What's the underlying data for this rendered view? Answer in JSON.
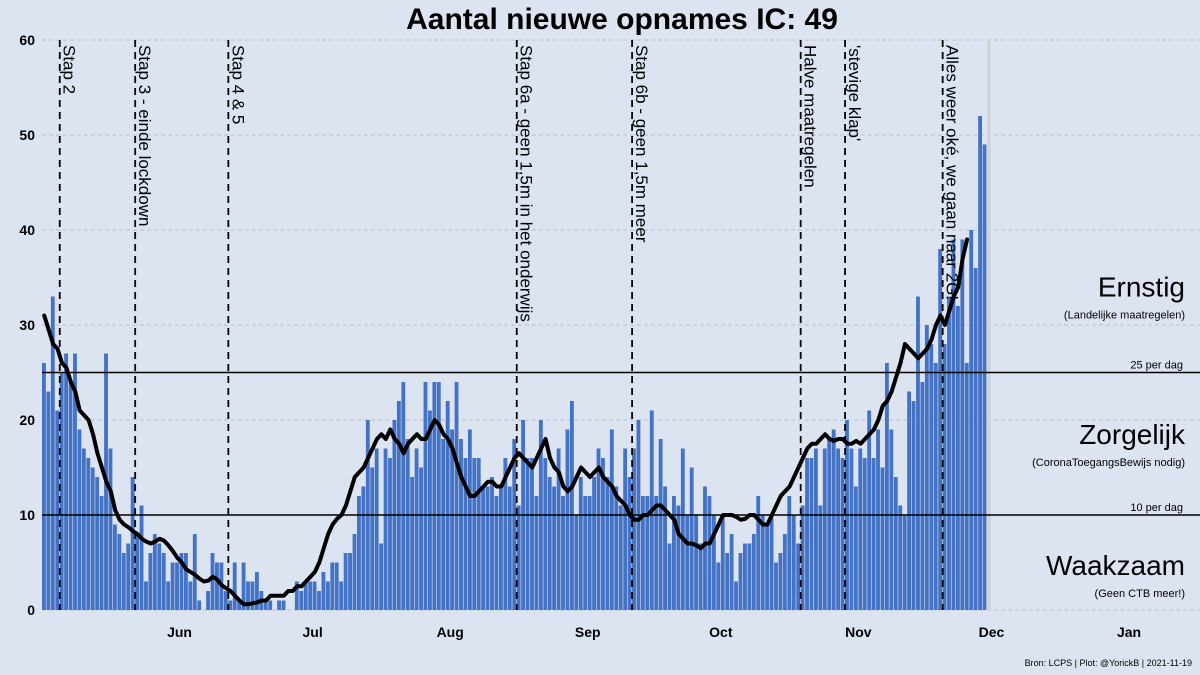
{
  "chart_data": {
    "type": "bar",
    "title": "Aantal nieuwe opnames IC:  49",
    "source": "Bron: LCPS | Plot: @YorickB |  2021-11-19",
    "ylim": [
      0,
      60
    ],
    "yticks": [
      0,
      10,
      20,
      30,
      40,
      50,
      60
    ],
    "grid": "horizontal dashed",
    "x_range": [
      "2021-05-15",
      "2022-01-31"
    ],
    "month_labels": [
      {
        "label": "Jun",
        "date": "2021-06-15"
      },
      {
        "label": "Jul",
        "date": "2021-07-15"
      },
      {
        "label": "Aug",
        "date": "2021-08-15"
      },
      {
        "label": "Sep",
        "date": "2021-09-15"
      },
      {
        "label": "Oct",
        "date": "2021-10-15"
      },
      {
        "label": "Nov",
        "date": "2021-11-15"
      },
      {
        "label": "Dec",
        "date": "2021-12-15"
      },
      {
        "label": "Jan",
        "date": "2022-01-15"
      }
    ],
    "series": [
      {
        "kind": "bars",
        "start_date": "2021-05-15",
        "values": [
          26,
          23,
          33,
          21,
          25,
          27,
          24,
          27,
          19,
          17,
          16,
          15,
          14,
          12,
          27,
          17,
          9,
          8,
          6,
          7,
          14,
          8,
          11,
          3,
          6,
          8,
          7,
          6,
          3,
          5,
          5,
          6,
          6,
          3,
          8,
          1,
          0,
          2,
          6,
          5,
          5,
          2,
          1,
          5,
          1,
          5,
          3,
          3,
          4,
          2,
          1,
          1,
          0,
          1,
          1,
          0,
          0,
          3,
          2,
          3,
          3,
          3,
          2,
          4,
          3,
          5,
          5,
          3,
          6,
          6,
          8,
          12,
          13,
          20,
          15,
          17,
          7,
          17,
          16,
          20,
          22,
          24,
          18,
          14,
          17,
          15,
          24,
          21,
          24,
          24,
          18,
          22,
          19,
          24,
          18,
          16,
          19,
          16,
          16,
          13,
          13,
          14,
          12,
          13,
          16,
          13,
          18,
          11,
          20,
          16,
          16,
          12,
          20,
          16,
          14,
          13,
          17,
          12,
          19,
          22,
          10,
          14,
          12,
          12,
          14,
          17,
          16,
          14,
          19,
          13,
          11,
          17,
          14,
          17,
          20,
          12,
          12,
          21,
          12,
          18,
          13,
          7,
          12,
          11,
          17,
          10,
          15,
          10,
          7,
          13,
          12,
          10,
          5,
          10,
          6,
          8,
          3,
          6,
          7,
          7,
          8,
          12,
          10,
          9,
          10,
          5,
          6,
          8,
          12,
          10,
          7,
          11,
          16,
          16,
          17,
          11,
          17,
          18,
          19,
          17,
          16,
          20,
          17,
          13,
          17,
          16,
          21,
          16,
          19,
          15,
          26,
          19,
          14,
          11,
          10,
          23,
          22,
          33,
          24,
          30,
          28,
          26,
          38,
          28,
          33,
          39,
          32,
          39,
          26,
          40,
          36,
          52,
          49,
          60
        ],
        "color": "#4472c4",
        "last_value_color": "#d0d3d8"
      },
      {
        "kind": "line",
        "start_date": "2021-05-15",
        "values": [
          31,
          29.5,
          28,
          27.5,
          26,
          25.5,
          24,
          23,
          21,
          20.5,
          20,
          18.5,
          16.5,
          15,
          13.5,
          12.5,
          10.5,
          9.5,
          9,
          8.7,
          8.3,
          8,
          7.5,
          7.2,
          7,
          7.2,
          7.5,
          7.3,
          6.8,
          6.2,
          5.5,
          5,
          4.3,
          4,
          3.7,
          3.3,
          3,
          3.1,
          3.5,
          3.2,
          2.6,
          2.3,
          2,
          1.5,
          1,
          0.6,
          0.6,
          0.7,
          0.8,
          1,
          1,
          1.5,
          1.5,
          1.5,
          1.5,
          2,
          2,
          2.5,
          2.5,
          3,
          3.5,
          4,
          5,
          6.5,
          8,
          9,
          9.6,
          10,
          11,
          12.5,
          14,
          14.5,
          15,
          16,
          17,
          18,
          18.5,
          18,
          19,
          18,
          17.5,
          16.5,
          17.5,
          18,
          18.5,
          18,
          18,
          19,
          20,
          19.5,
          18.5,
          18,
          17,
          15.5,
          14,
          13,
          12,
          12,
          12.5,
          13,
          13.5,
          13.5,
          13,
          13,
          14,
          15,
          16,
          16.5,
          16,
          15.5,
          15,
          16,
          17,
          18,
          16,
          15,
          14.5,
          13,
          12.5,
          13,
          14,
          15,
          14.5,
          14,
          14.5,
          15,
          14,
          13.5,
          13,
          12,
          11.5,
          11,
          10,
          9.5,
          9.5,
          10,
          10,
          10.5,
          11,
          11,
          10.5,
          10,
          9.5,
          8,
          7.5,
          7,
          7,
          6.8,
          6.5,
          7,
          7,
          8,
          9,
          10,
          10,
          10,
          9.8,
          9.5,
          9.6,
          10,
          10,
          9.5,
          9,
          9,
          10,
          11,
          12,
          12.5,
          13,
          14,
          15,
          16,
          17,
          17.5,
          17.5,
          18,
          18.5,
          18,
          17.8,
          18,
          18,
          17.5,
          17.5,
          17.8,
          17.5,
          18,
          18.5,
          19,
          20,
          21.5,
          22,
          23,
          24.5,
          26,
          28,
          27.5,
          27,
          26.5,
          27,
          27.5,
          28.5,
          30,
          31,
          30,
          31.5,
          33,
          34,
          37,
          39
        ],
        "color": "#000000"
      }
    ],
    "events": [
      {
        "label": "Stap 2",
        "date": "2021-05-19"
      },
      {
        "label": "Stap 3 - einde lockdown",
        "date": "2021-06-05"
      },
      {
        "label": "Stap 4 & 5",
        "date": "2021-06-26"
      },
      {
        "label": "Stap 6a - geen 1,5m in het onderwijs",
        "date": "2021-08-30"
      },
      {
        "label": "Stap 6b - geen 1,5m meer",
        "date": "2021-09-25"
      },
      {
        "label": "Halve maatregelen",
        "date": "2021-11-02"
      },
      {
        "label": "'stevige klap'",
        "date": "2021-11-12"
      },
      {
        "label": "Alles weer oké, we gaan naar 2G!",
        "date": "2021-12-04"
      }
    ],
    "thresholds": [
      {
        "value": 25,
        "label": "25 per dag"
      },
      {
        "value": 10,
        "label": "10 per dag"
      }
    ],
    "zones": [
      {
        "name": "Ernstig",
        "sub": "(Landelijke maatregelen)",
        "y": 33
      },
      {
        "name": "Zorgelijk",
        "sub": "(CoronaToegangsBewijs nodig)",
        "y": 17.5
      },
      {
        "name": "Waakzaam",
        "sub": "(Geen CTB meer!)",
        "y": 3.7
      }
    ]
  }
}
